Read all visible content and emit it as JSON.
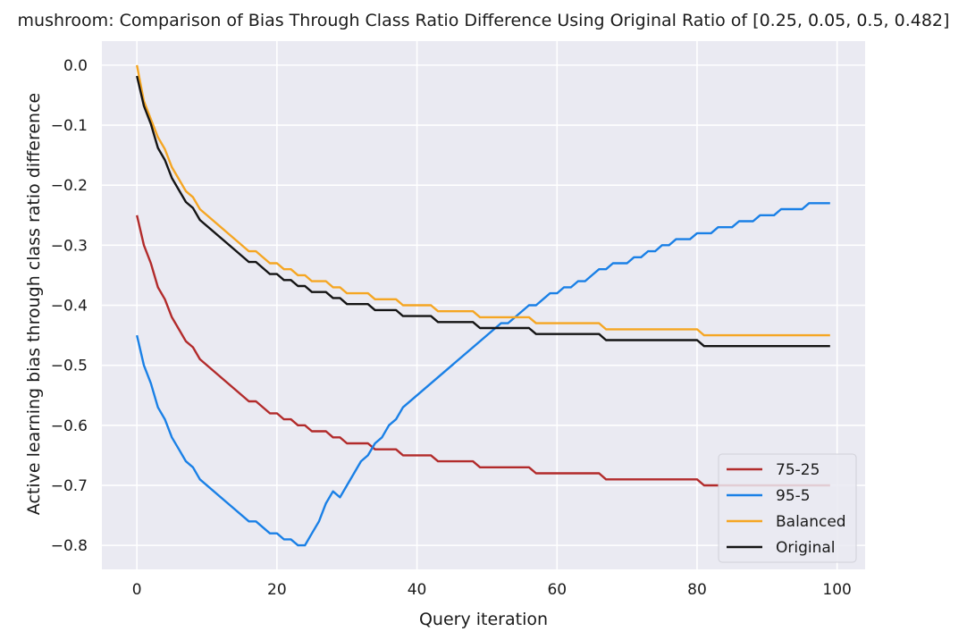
{
  "chart_data": {
    "type": "line",
    "title": "mushroom: Comparison of Bias Through Class Ratio Difference Using Original Ratio of [0.25, 0.05, 0.5, 0.482]",
    "xlabel": "Query iteration",
    "ylabel": "Active learning bias through class ratio difference",
    "xlim": [
      -5,
      104
    ],
    "ylim": [
      -0.84,
      0.04
    ],
    "xticks": [
      0,
      20,
      40,
      60,
      80,
      100
    ],
    "xtick_labels": [
      "0",
      "20",
      "40",
      "60",
      "80",
      "100"
    ],
    "yticks": [
      0.0,
      -0.1,
      -0.2,
      -0.3,
      -0.4,
      -0.5,
      -0.6,
      -0.7,
      -0.8
    ],
    "ytick_labels": [
      "0.0",
      "−0.1",
      "−0.2",
      "−0.3",
      "−0.4",
      "−0.5",
      "−0.6",
      "−0.7",
      "−0.8"
    ],
    "grid": true,
    "legend_position": "bottom-right",
    "background": "#eaeaf2",
    "series": [
      {
        "name": "75-25",
        "color": "#b22b2b",
        "x": [
          0,
          1,
          2,
          3,
          4,
          5,
          6,
          7,
          8,
          9,
          16,
          17,
          19,
          20,
          21,
          22,
          23,
          24,
          25,
          26,
          27,
          28,
          29,
          30,
          31,
          32,
          33,
          34,
          35,
          36,
          37,
          38,
          42,
          43,
          48,
          49,
          56,
          57,
          66,
          67,
          80,
          81,
          99
        ],
        "y": [
          -0.25,
          -0.3,
          -0.33,
          -0.37,
          -0.39,
          -0.42,
          -0.44,
          -0.46,
          -0.47,
          -0.49,
          -0.56,
          -0.56,
          -0.58,
          -0.58,
          -0.59,
          -0.59,
          -0.6,
          -0.6,
          -0.61,
          -0.61,
          -0.61,
          -0.62,
          -0.62,
          -0.63,
          -0.63,
          -0.63,
          -0.63,
          -0.64,
          -0.64,
          -0.64,
          -0.64,
          -0.65,
          -0.65,
          -0.66,
          -0.66,
          -0.67,
          -0.67,
          -0.68,
          -0.68,
          -0.69,
          -0.69,
          -0.7,
          -0.7
        ]
      },
      {
        "name": "95-5",
        "color": "#1a80e6",
        "x": [
          0,
          1,
          2,
          3,
          4,
          5,
          6,
          7,
          8,
          9,
          16,
          17,
          19,
          20,
          21,
          22,
          23,
          24,
          25,
          26,
          27,
          28,
          29,
          30,
          31,
          32,
          33,
          34,
          35,
          36,
          37,
          38,
          52,
          53,
          56,
          57,
          58,
          59,
          60,
          61,
          62,
          63,
          64,
          65,
          66,
          67,
          68,
          69,
          70,
          71,
          72,
          73,
          74,
          75,
          76,
          77,
          78,
          79,
          80,
          81,
          82,
          83,
          84,
          85,
          86,
          87,
          88,
          89,
          90,
          91,
          92,
          93,
          94,
          95,
          96,
          97,
          98,
          99
        ],
        "y": [
          -0.45,
          -0.5,
          -0.53,
          -0.57,
          -0.59,
          -0.62,
          -0.64,
          -0.66,
          -0.67,
          -0.69,
          -0.76,
          -0.76,
          -0.78,
          -0.78,
          -0.79,
          -0.79,
          -0.8,
          -0.8,
          -0.78,
          -0.76,
          -0.73,
          -0.71,
          -0.72,
          -0.7,
          -0.68,
          -0.66,
          -0.65,
          -0.63,
          -0.62,
          -0.6,
          -0.59,
          -0.57,
          -0.43,
          -0.43,
          -0.4,
          -0.4,
          -0.39,
          -0.38,
          -0.38,
          -0.37,
          -0.37,
          -0.36,
          -0.36,
          -0.35,
          -0.34,
          -0.34,
          -0.33,
          -0.33,
          -0.33,
          -0.32,
          -0.32,
          -0.31,
          -0.31,
          -0.3,
          -0.3,
          -0.29,
          -0.29,
          -0.29,
          -0.28,
          -0.28,
          -0.28,
          -0.27,
          -0.27,
          -0.27,
          -0.26,
          -0.26,
          -0.26,
          -0.25,
          -0.25,
          -0.25,
          -0.24,
          -0.24,
          -0.24,
          -0.24,
          -0.23,
          -0.23,
          -0.23,
          -0.23
        ]
      },
      {
        "name": "Balanced",
        "color": "#f5a623",
        "x": [
          0,
          1,
          2,
          3,
          4,
          5,
          6,
          7,
          8,
          9,
          16,
          17,
          19,
          20,
          21,
          22,
          23,
          24,
          25,
          26,
          27,
          28,
          29,
          30,
          31,
          32,
          33,
          34,
          35,
          36,
          37,
          38,
          42,
          43,
          48,
          49,
          56,
          57,
          66,
          67,
          80,
          81,
          99
        ],
        "y": [
          0.0,
          -0.06,
          -0.09,
          -0.12,
          -0.14,
          -0.17,
          -0.19,
          -0.21,
          -0.22,
          -0.24,
          -0.31,
          -0.31,
          -0.33,
          -0.33,
          -0.34,
          -0.34,
          -0.35,
          -0.35,
          -0.36,
          -0.36,
          -0.36,
          -0.37,
          -0.37,
          -0.38,
          -0.38,
          -0.38,
          -0.38,
          -0.39,
          -0.39,
          -0.39,
          -0.39,
          -0.4,
          -0.4,
          -0.41,
          -0.41,
          -0.42,
          -0.42,
          -0.43,
          -0.43,
          -0.44,
          -0.44,
          -0.45,
          -0.45
        ]
      },
      {
        "name": "Original",
        "color": "#141414",
        "x": [
          0,
          1,
          2,
          3,
          4,
          5,
          6,
          7,
          8,
          9,
          16,
          17,
          19,
          20,
          21,
          22,
          23,
          24,
          25,
          26,
          27,
          28,
          29,
          30,
          31,
          32,
          33,
          34,
          35,
          36,
          37,
          38,
          42,
          43,
          48,
          49,
          56,
          57,
          66,
          67,
          80,
          81,
          99
        ],
        "y": [
          -0.018,
          -0.068,
          -0.098,
          -0.138,
          -0.158,
          -0.188,
          -0.208,
          -0.228,
          -0.238,
          -0.258,
          -0.328,
          -0.328,
          -0.348,
          -0.348,
          -0.358,
          -0.358,
          -0.368,
          -0.368,
          -0.378,
          -0.378,
          -0.378,
          -0.388,
          -0.388,
          -0.398,
          -0.398,
          -0.398,
          -0.398,
          -0.408,
          -0.408,
          -0.408,
          -0.408,
          -0.418,
          -0.418,
          -0.428,
          -0.428,
          -0.438,
          -0.438,
          -0.448,
          -0.448,
          -0.458,
          -0.458,
          -0.468,
          -0.468
        ]
      }
    ]
  }
}
